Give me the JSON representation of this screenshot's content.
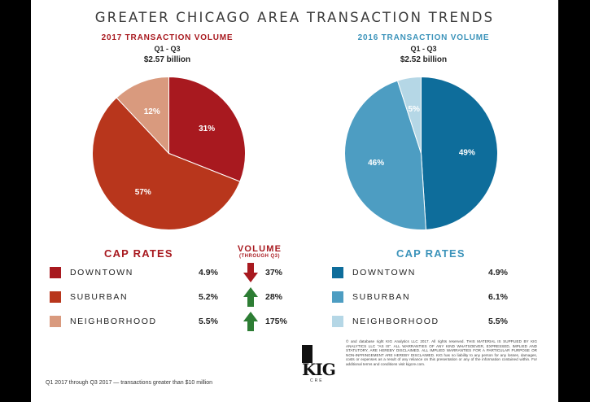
{
  "title": "GREATER CHICAGO AREA TRANSACTION TRENDS",
  "colors": {
    "downtown_red": "#a8191f",
    "suburban_red": "#b8361c",
    "neighborhood_red": "#d99a7e",
    "downtown_blue": "#0e6d9b",
    "suburban_blue": "#4d9dc2",
    "neighborhood_blue": "#b5d7e6",
    "arrow_down": "#a8191f",
    "arrow_up": "#2d7d34"
  },
  "left": {
    "heading": "2017 TRANSACTION VOLUME",
    "period": "Q1 - Q3",
    "total": "$2.57 billion",
    "cap_rates_label": "CAP RATES",
    "volume_label": "VOLUME",
    "volume_sub": "(THROUGH Q3)"
  },
  "right": {
    "heading": "2016 TRANSACTION VOLUME",
    "period": "Q1 - Q3",
    "total": "$2.52 billion",
    "cap_rates_label": "CAP RATES"
  },
  "chart_data": [
    {
      "type": "pie",
      "title": "2017 TRANSACTION VOLUME",
      "categories": [
        "Downtown",
        "Suburban",
        "Neighborhood"
      ],
      "values": [
        31,
        57,
        12
      ],
      "labels": [
        "31%",
        "57%",
        "12%"
      ],
      "colors": [
        "#a8191f",
        "#b8361c",
        "#d99a7e"
      ]
    },
    {
      "type": "pie",
      "title": "2016 TRANSACTION VOLUME",
      "categories": [
        "Downtown",
        "Suburban",
        "Neighborhood"
      ],
      "values": [
        49,
        46,
        5
      ],
      "labels": [
        "49%",
        "46%",
        "5%"
      ],
      "colors": [
        "#0e6d9b",
        "#4d9dc2",
        "#b5d7e6"
      ]
    }
  ],
  "legend_left": [
    {
      "label": "DOWNTOWN",
      "cap": "4.9%",
      "volume": "37%",
      "direction": "down",
      "color": "#a8191f"
    },
    {
      "label": "SUBURBAN",
      "cap": "5.2%",
      "volume": "28%",
      "direction": "up",
      "color": "#b8361c"
    },
    {
      "label": "NEIGHBORHOOD",
      "cap": "5.5%",
      "volume": "175%",
      "direction": "up",
      "color": "#d99a7e"
    }
  ],
  "legend_right": [
    {
      "label": "DOWNTOWN",
      "cap": "4.9%",
      "color": "#0e6d9b"
    },
    {
      "label": "SUBURBAN",
      "cap": "6.1%",
      "color": "#4d9dc2"
    },
    {
      "label": "NEIGHBORHOOD",
      "cap": "5.5%",
      "color": "#b5d7e6"
    }
  ],
  "logo": {
    "text": "KIG",
    "sub": "CRE"
  },
  "legal": "© and database right KIG Analytics LLC 2017. All rights reserved. THIS MATERIAL IS SUPPLIED BY KIG ANALYTICS LLC \"AS IS\". ALL WARRANTIES OF ANY KIND WHATSOEVER, EXPRESSED, IMPLIED AND STATUTORY, ARE HEREBY DISCLAIMED. ALL IMPLIED WARRANTIES FOR A PARTICULAR PURPOSE OR NON-INFRINGEMENT ARE HEREBY DISCLAIMED. KIG has no liability to any person for any losses, damages, costs or expenses as a result of any reliance on this presentation or any of the information contained within. For additional terms and conditions visit kigcre.com.",
  "footnote": "Q1 2017 through Q3 2017 — transactions greater than $10 million"
}
